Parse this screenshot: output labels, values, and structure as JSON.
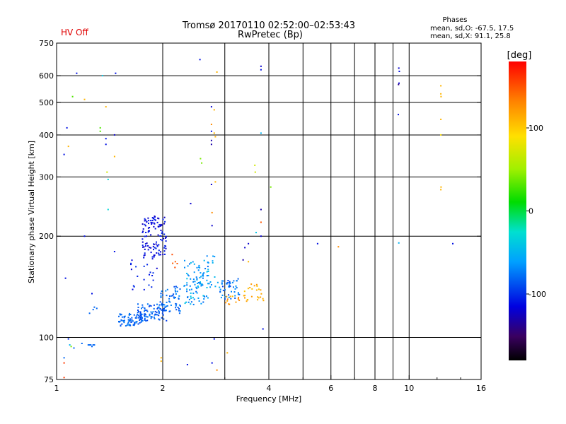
{
  "header": {
    "title": "Tromsø 20170110 02:52:00–02:53:43",
    "subtitle": "RwPretec (Bp)",
    "hv_status": "HV Off",
    "stats_title": "Phases",
    "stats_line1": "mean, sd,O: -67.5, 17.5",
    "stats_line2": "mean, sd,X:  91.1, 25.8"
  },
  "colorbar": {
    "title": "[deg]",
    "range": [
      -180,
      180
    ],
    "ticks": [
      {
        "value": 100,
        "label": "100"
      },
      {
        "value": 0,
        "label": "0"
      },
      {
        "value": -100,
        "label": "-100"
      }
    ]
  },
  "chart_data": {
    "type": "scatter",
    "xlabel": "Frequency [MHz]",
    "ylabel": "Stationary phase Virtual Height [km]",
    "xscale": "log",
    "yscale": "log",
    "xlim": [
      1,
      16
    ],
    "ylim": [
      75,
      750
    ],
    "xticks": [
      {
        "value": 1,
        "label": "1"
      },
      {
        "value": 2,
        "label": "2"
      },
      {
        "value": 4,
        "label": "4"
      },
      {
        "value": 6,
        "label": "6"
      },
      {
        "value": 8,
        "label": "8"
      },
      {
        "value": 10,
        "label": "10"
      },
      {
        "value": 16,
        "label": "16"
      }
    ],
    "xgrid": [
      2,
      3,
      4,
      5,
      6,
      7,
      8,
      9,
      10
    ],
    "yticks": [
      {
        "value": 75,
        "label": "75"
      },
      {
        "value": 100,
        "label": "100"
      },
      {
        "value": 200,
        "label": "200"
      },
      {
        "value": 300,
        "label": "300"
      },
      {
        "value": 400,
        "label": "400"
      },
      {
        "value": 500,
        "label": "500"
      },
      {
        "value": 600,
        "label": "600"
      },
      {
        "value": 750,
        "label": "750"
      }
    ],
    "ygrid": [
      100,
      200,
      300,
      400,
      500,
      600
    ],
    "grid": true,
    "points": [
      {
        "f": 1.05,
        "h": 350,
        "p": -110
      },
      {
        "f": 1.07,
        "h": 420,
        "p": -110
      },
      {
        "f": 1.08,
        "h": 370,
        "p": 110
      },
      {
        "f": 1.11,
        "h": 520,
        "p": 30
      },
      {
        "f": 1.14,
        "h": 610,
        "p": -110
      },
      {
        "f": 1.2,
        "h": 510,
        "p": 110
      },
      {
        "f": 1.2,
        "h": 200,
        "p": -110
      },
      {
        "f": 1.06,
        "h": 150,
        "p": -110
      },
      {
        "f": 1.26,
        "h": 135,
        "p": -110
      },
      {
        "f": 1.33,
        "h": 420,
        "p": 30
      },
      {
        "f": 1.33,
        "h": 410,
        "p": 30
      },
      {
        "f": 1.38,
        "h": 485,
        "p": 110
      },
      {
        "f": 1.38,
        "h": 390,
        "p": -110
      },
      {
        "f": 1.38,
        "h": 375,
        "p": -110
      },
      {
        "f": 1.39,
        "h": 310,
        "p": 70
      },
      {
        "f": 1.4,
        "h": 295,
        "p": -30
      },
      {
        "f": 1.4,
        "h": 240,
        "p": -30
      },
      {
        "f": 1.46,
        "h": 400,
        "p": -120
      },
      {
        "f": 1.46,
        "h": 345,
        "p": 110
      },
      {
        "f": 1.46,
        "h": 180,
        "p": -110
      },
      {
        "f": 1.35,
        "h": 600,
        "p": -40
      },
      {
        "f": 1.47,
        "h": 610,
        "p": -110
      },
      {
        "f": 1.05,
        "h": 87,
        "p": -80
      },
      {
        "f": 1.05,
        "h": 84,
        "p": 160
      },
      {
        "f": 1.05,
        "h": 76,
        "p": 160
      },
      {
        "f": 1.08,
        "h": 99,
        "p": -100
      },
      {
        "f": 1.09,
        "h": 95,
        "p": -50
      },
      {
        "f": 1.1,
        "h": 94,
        "p": 40
      },
      {
        "f": 1.12,
        "h": 93,
        "p": -80
      },
      {
        "f": 1.18,
        "h": 96,
        "p": -80
      },
      {
        "f": 1.23,
        "h": 95,
        "p": -80
      },
      {
        "f": 1.24,
        "h": 95,
        "p": -80
      },
      {
        "f": 1.25,
        "h": 95,
        "p": -80
      },
      {
        "f": 1.26,
        "h": 94,
        "p": -80
      },
      {
        "f": 1.27,
        "h": 95,
        "p": -80
      },
      {
        "f": 1.28,
        "h": 95,
        "p": -80
      },
      {
        "f": 1.24,
        "h": 118,
        "p": -80
      },
      {
        "f": 1.27,
        "h": 121,
        "p": -80
      },
      {
        "f": 1.28,
        "h": 123,
        "p": -80
      },
      {
        "f": 1.3,
        "h": 122,
        "p": -80
      },
      {
        "f": 2.55,
        "h": 670,
        "p": -110
      },
      {
        "f": 2.85,
        "h": 615,
        "p": 110
      },
      {
        "f": 2.75,
        "h": 485,
        "p": -120
      },
      {
        "f": 2.8,
        "h": 475,
        "p": 110
      },
      {
        "f": 2.75,
        "h": 430,
        "p": 130
      },
      {
        "f": 2.75,
        "h": 410,
        "p": -110
      },
      {
        "f": 2.8,
        "h": 405,
        "p": 110
      },
      {
        "f": 2.82,
        "h": 395,
        "p": 110
      },
      {
        "f": 2.75,
        "h": 385,
        "p": -130
      },
      {
        "f": 2.75,
        "h": 375,
        "p": -130
      },
      {
        "f": 2.56,
        "h": 340,
        "p": 40
      },
      {
        "f": 2.58,
        "h": 330,
        "p": 40
      },
      {
        "f": 2.75,
        "h": 285,
        "p": -120
      },
      {
        "f": 2.82,
        "h": 290,
        "p": 110
      },
      {
        "f": 2.4,
        "h": 250,
        "p": -120
      },
      {
        "f": 2.76,
        "h": 235,
        "p": 130
      },
      {
        "f": 2.76,
        "h": 215,
        "p": -120
      },
      {
        "f": 3.8,
        "h": 640,
        "p": -120
      },
      {
        "f": 3.8,
        "h": 625,
        "p": -110
      },
      {
        "f": 3.8,
        "h": 405,
        "p": -50
      },
      {
        "f": 3.65,
        "h": 325,
        "p": 70
      },
      {
        "f": 3.66,
        "h": 310,
        "p": 70
      },
      {
        "f": 4.05,
        "h": 280,
        "p": 40
      },
      {
        "f": 3.8,
        "h": 240,
        "p": -130
      },
      {
        "f": 3.8,
        "h": 220,
        "p": 150
      },
      {
        "f": 3.68,
        "h": 205,
        "p": -40
      },
      {
        "f": 3.8,
        "h": 200,
        "p": -120
      },
      {
        "f": 3.5,
        "h": 190,
        "p": -120
      },
      {
        "f": 3.42,
        "h": 185,
        "p": -120
      },
      {
        "f": 3.38,
        "h": 170,
        "p": -130
      },
      {
        "f": 3.5,
        "h": 168,
        "p": 110
      },
      {
        "f": 3.85,
        "h": 106,
        "p": -110
      },
      {
        "f": 2.8,
        "h": 99,
        "p": -110
      },
      {
        "f": 3.05,
        "h": 90,
        "p": 110
      },
      {
        "f": 2.76,
        "h": 84,
        "p": -110
      },
      {
        "f": 2.85,
        "h": 80,
        "p": 130
      },
      {
        "f": 2.35,
        "h": 83,
        "p": -110
      },
      {
        "f": 1.98,
        "h": 87,
        "p": 110
      },
      {
        "f": 1.98,
        "h": 85,
        "p": 110
      },
      {
        "f": 5.5,
        "h": 190,
        "p": -110
      },
      {
        "f": 6.3,
        "h": 186,
        "p": 130
      },
      {
        "f": 9.35,
        "h": 632,
        "p": -120
      },
      {
        "f": 9.38,
        "h": 618,
        "p": -110
      },
      {
        "f": 9.36,
        "h": 570,
        "p": -120
      },
      {
        "f": 9.33,
        "h": 565,
        "p": -140
      },
      {
        "f": 9.32,
        "h": 460,
        "p": -110
      },
      {
        "f": 9.35,
        "h": 191,
        "p": -50
      },
      {
        "f": 12.3,
        "h": 560,
        "p": 110
      },
      {
        "f": 12.3,
        "h": 530,
        "p": 110
      },
      {
        "f": 12.32,
        "h": 520,
        "p": 110
      },
      {
        "f": 12.3,
        "h": 445,
        "p": 110
      },
      {
        "f": 12.3,
        "h": 400,
        "p": 90
      },
      {
        "f": 12.32,
        "h": 280,
        "p": 110
      },
      {
        "f": 12.3,
        "h": 275,
        "p": 110
      },
      {
        "f": 13.3,
        "h": 190,
        "p": -110
      }
    ],
    "clusters": [
      {
        "f": [
          1.5,
          1.75
        ],
        "h": [
          108,
          118
        ],
        "p": [
          -90,
          -70
        ],
        "n": 70
      },
      {
        "f": [
          1.7,
          2.05
        ],
        "h": [
          112,
          126
        ],
        "p": [
          -95,
          -70
        ],
        "n": 90
      },
      {
        "f": [
          1.95,
          2.25
        ],
        "h": [
          118,
          142
        ],
        "p": [
          -90,
          -65
        ],
        "n": 60
      },
      {
        "f": [
          1.75,
          2.05
        ],
        "h": [
          175,
          230
        ],
        "p": [
          -125,
          -100
        ],
        "n": 110
      },
      {
        "f": [
          1.62,
          1.95
        ],
        "h": [
          135,
          175
        ],
        "p": [
          -120,
          -95
        ],
        "n": 25
      },
      {
        "f": [
          2.3,
          2.7
        ],
        "h": [
          125,
          170
        ],
        "p": [
          -80,
          -40
        ],
        "n": 80
      },
      {
        "f": [
          2.5,
          2.9
        ],
        "h": [
          140,
          175
        ],
        "p": [
          -75,
          -45
        ],
        "n": 30
      },
      {
        "f": [
          2.9,
          3.3
        ],
        "h": [
          130,
          150
        ],
        "p": [
          -95,
          -60
        ],
        "n": 45
      },
      {
        "f": [
          3.0,
          3.3
        ],
        "h": [
          125,
          133
        ],
        "p": [
          110,
          140
        ],
        "n": 12
      },
      {
        "f": [
          3.4,
          3.9
        ],
        "h": [
          128,
          145
        ],
        "p": [
          100,
          125
        ],
        "n": 25
      },
      {
        "f": [
          2.1,
          2.2
        ],
        "h": [
          160,
          180
        ],
        "p": [
          140,
          160
        ],
        "n": 5
      }
    ]
  }
}
